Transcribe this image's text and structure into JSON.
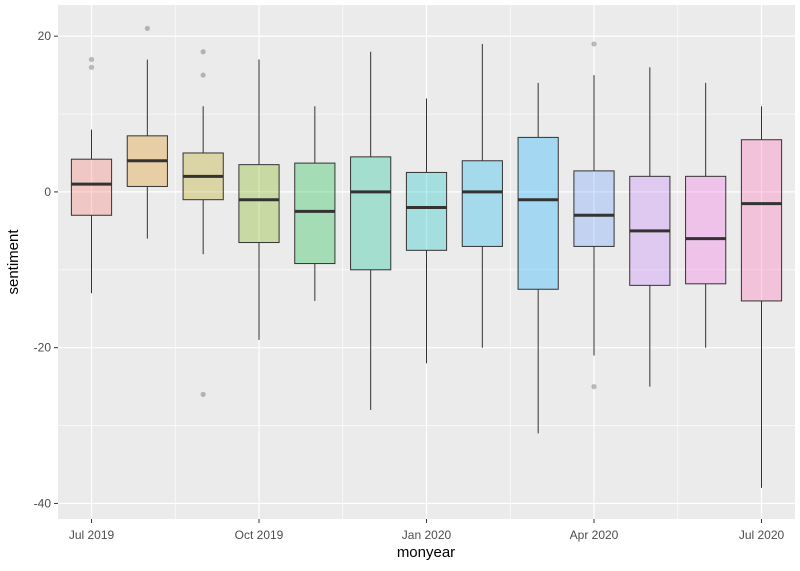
{
  "chart_data": {
    "type": "box",
    "xlabel": "monyear",
    "ylabel": "sentiment",
    "ylim": [
      -42,
      24
    ],
    "y_ticks": [
      20,
      0,
      -20,
      -40
    ],
    "y_tick_labels": [
      "20",
      "0",
      "-20",
      "-40"
    ],
    "x_ticks": [
      "2019-07",
      "2019-10",
      "2020-01",
      "2020-04",
      "2020-07"
    ],
    "x_tick_labels": [
      "Jul 2019",
      "Oct 2019",
      "Jan 2020",
      "Apr 2020",
      "Jul 2020"
    ],
    "grid": true,
    "legend": "none",
    "series": [
      {
        "month": "2019-07",
        "color": "#F8766D",
        "min": -13,
        "q1": -3,
        "median": 1,
        "q3": 4.2,
        "max": 8,
        "outliers": [
          16,
          17
        ]
      },
      {
        "month": "2019-08",
        "color": "#DE8C00",
        "min": -6,
        "q1": 0.7,
        "median": 4,
        "q3": 7.2,
        "max": 17,
        "outliers": [
          21
        ]
      },
      {
        "month": "2019-09",
        "color": "#B79F00",
        "min": -8,
        "q1": -1,
        "median": 2,
        "q3": 5,
        "max": 11,
        "outliers": [
          15,
          18,
          -26
        ]
      },
      {
        "month": "2019-10",
        "color": "#7CAE00",
        "min": -19,
        "q1": -6.5,
        "median": -1,
        "q3": 3.5,
        "max": 17,
        "outliers": []
      },
      {
        "month": "2019-11",
        "color": "#00BA38",
        "min": -14,
        "q1": -9.2,
        "median": -2.5,
        "q3": 3.7,
        "max": 11,
        "outliers": []
      },
      {
        "month": "2019-12",
        "color": "#00C08B",
        "min": -28,
        "q1": -10,
        "median": 0,
        "q3": 4.5,
        "max": 18,
        "outliers": []
      },
      {
        "month": "2020-01",
        "color": "#00BFC4",
        "min": -22,
        "q1": -7.5,
        "median": -2,
        "q3": 2.5,
        "max": 12,
        "outliers": []
      },
      {
        "month": "2020-02",
        "color": "#00B4F0",
        "min": -20,
        "q1": -7,
        "median": 0,
        "q3": 4,
        "max": 19,
        "outliers": []
      },
      {
        "month": "2020-03",
        "color": "#00A9FF",
        "min": -31,
        "q1": -12.5,
        "median": -1,
        "q3": 7,
        "max": 14,
        "outliers": []
      },
      {
        "month": "2020-04",
        "color": "#619CFF",
        "min": -21,
        "q1": -7,
        "median": -3,
        "q3": 2.7,
        "max": 15,
        "outliers": [
          19,
          -25
        ]
      },
      {
        "month": "2020-05",
        "color": "#C77CFF",
        "min": -25,
        "q1": -12,
        "median": -5,
        "q3": 2,
        "max": 16,
        "outliers": []
      },
      {
        "month": "2020-06",
        "color": "#F564E3",
        "min": -20,
        "q1": -11.8,
        "median": -6,
        "q3": 2,
        "max": 14,
        "outliers": []
      },
      {
        "month": "2020-07",
        "color": "#FF64B0",
        "min": -38,
        "q1": -14,
        "median": -1.5,
        "q3": 6.7,
        "max": 11,
        "outliers": []
      }
    ]
  }
}
